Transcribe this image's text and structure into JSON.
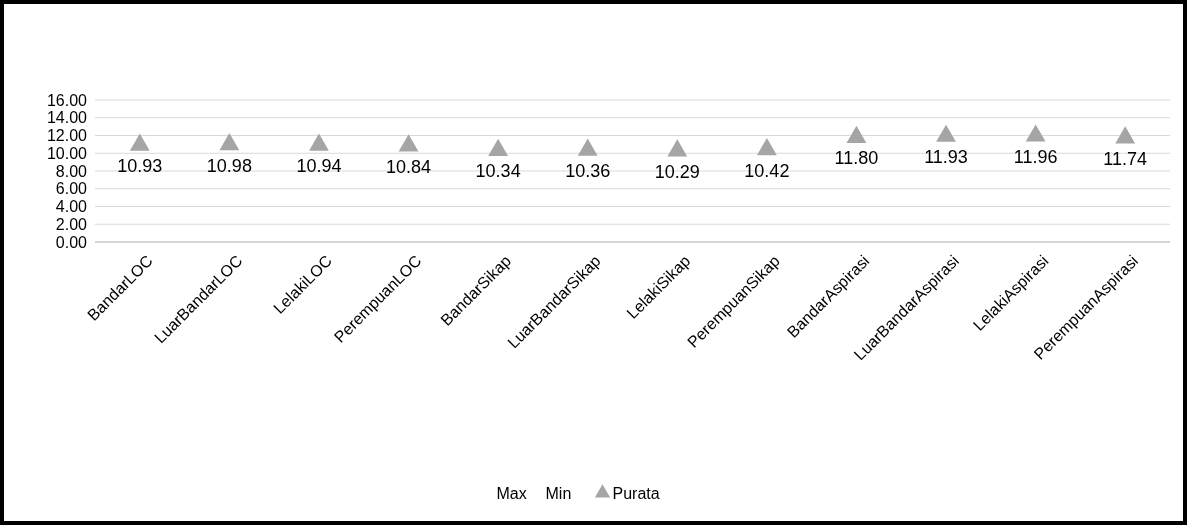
{
  "chart_data": {
    "type": "scatter",
    "categories": [
      "BandarLOC",
      "LuarBandarLOC",
      "LelakiLOC",
      "PerempuanLOC",
      "BandarSikap",
      "LuarBandarSikap",
      "LelakiSikap",
      "PerempuanSikap",
      "BandarAspirasi",
      "LuarBandarAspirasi",
      "LelakiAspirasi",
      "PerempuanAspirasi"
    ],
    "series": [
      {
        "name": "Max",
        "values": [
          null,
          null,
          null,
          null,
          null,
          null,
          null,
          null,
          null,
          null,
          null,
          null
        ]
      },
      {
        "name": "Min",
        "values": [
          null,
          null,
          null,
          null,
          null,
          null,
          null,
          null,
          null,
          null,
          null,
          null
        ]
      },
      {
        "name": "Purata",
        "color": "#a5a5a5",
        "marker": "triangle",
        "values": [
          10.93,
          10.98,
          10.94,
          10.84,
          10.34,
          10.36,
          10.29,
          10.42,
          11.8,
          11.93,
          11.96,
          11.74
        ],
        "value_labels": [
          "10.93",
          "10.98",
          "10.94",
          "10.84",
          "10.34",
          "10.36",
          "10.29",
          "10.42",
          "11.80",
          "11.93",
          "11.96",
          "11.74"
        ]
      }
    ],
    "ylim": [
      0,
      16
    ],
    "yticks": [
      {
        "value": 0,
        "label": "0.00"
      },
      {
        "value": 2,
        "label": "2.00"
      },
      {
        "value": 4,
        "label": "4.00"
      },
      {
        "value": 6,
        "label": "6.00"
      },
      {
        "value": 8,
        "label": "8.00"
      },
      {
        "value": 10,
        "label": "10.00"
      },
      {
        "value": 12,
        "label": "12.00"
      },
      {
        "value": 14,
        "label": "14.00"
      },
      {
        "value": 16,
        "label": "16.00"
      }
    ],
    "grid": "y",
    "legend": "bottom"
  }
}
